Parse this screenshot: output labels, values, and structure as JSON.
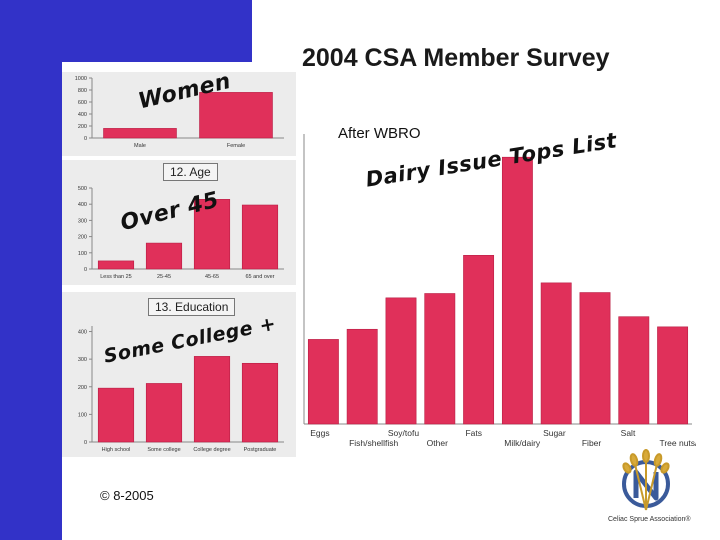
{
  "slide": {
    "title": "2004 CSA Member Survey",
    "subtitle": "After WBRO",
    "copyright": "© 8-2005",
    "logo_text": "Celiac Sprue Association®",
    "band_color": "#3232c8",
    "bar_color": "#e0305a"
  },
  "annotations": {
    "gender": "Women",
    "age": "Over 45",
    "education": "Some College +",
    "dairy": "Dairy Issue Tops List"
  },
  "chart_data": [
    {
      "type": "bar",
      "title": "",
      "categories": [
        "Male",
        "Female"
      ],
      "values": [
        160,
        760
      ],
      "yticks": [
        0,
        200,
        400,
        600,
        800,
        1000
      ],
      "ylim": [
        0,
        1000
      ],
      "grid": false
    },
    {
      "type": "bar",
      "title": "12. Age",
      "categories": [
        "Less than 25",
        "25-45",
        "45-65",
        "65 and over"
      ],
      "values": [
        50,
        160,
        430,
        395
      ],
      "yticks": [
        0,
        100,
        200,
        300,
        400,
        500
      ],
      "ylim": [
        0,
        500
      ],
      "grid": false
    },
    {
      "type": "bar",
      "title": "13. Education",
      "categories": [
        "High school",
        "Some college",
        "College degree",
        "Postgraduate"
      ],
      "values": [
        195,
        212,
        310,
        285
      ],
      "yticks": [
        0,
        100,
        200,
        300,
        400
      ],
      "ylim": [
        0,
        420
      ],
      "grid": false
    },
    {
      "type": "bar",
      "title": "",
      "categories": [
        "Eggs",
        "Fish/shellfish",
        "Soy/tofu",
        "Other",
        "Fats",
        "Milk/dairy",
        "Sugar",
        "Fiber",
        "Salt",
        "Tree nuts/peanuts"
      ],
      "category_labels": [
        "Eggs",
        "Fish/shellfish",
        "Soy/tofu",
        "Other",
        "Fats",
        "Milk/dairy",
        "Sugar",
        "Fiber",
        "Salt",
        "Tree nuts/peanut"
      ],
      "values": [
        175,
        196,
        261,
        270,
        349,
        552,
        292,
        272,
        222,
        201
      ],
      "ylim": [
        0,
        600
      ],
      "grid": false
    }
  ]
}
